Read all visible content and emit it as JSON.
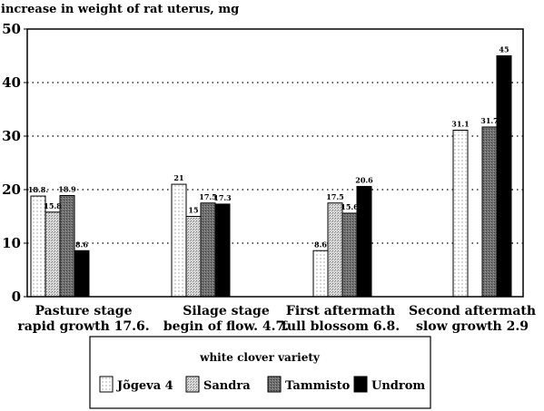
{
  "chart_data": {
    "type": "bar",
    "ylabel": "increase in weight of rat uterus, mg",
    "ylim": [
      0,
      50
    ],
    "yticks": [
      0,
      10,
      20,
      30,
      40,
      50
    ],
    "grid": "dotted horizontal",
    "legend_title": "white clover variety",
    "legend_placement": "bottom-center",
    "categories": [
      [
        "Pasture stage",
        "rapid growth 17.6."
      ],
      [
        "Silage stage",
        "begin of flow. 4.7."
      ],
      [
        "First aftermath",
        "full blossom 6.8."
      ],
      [
        "Second aftermath",
        "slow growth 2.9"
      ]
    ],
    "series": [
      {
        "name": "Jõgeva 4",
        "values": [
          18.8,
          21,
          8.6,
          31.1
        ],
        "labels": [
          "18.8.",
          "21",
          "8.6",
          "31.1"
        ],
        "pattern": "dots",
        "color": "#ffffff"
      },
      {
        "name": "Sandra",
        "values": [
          15.8,
          15,
          17.5,
          null
        ],
        "labels": [
          "15.8",
          "15",
          "17.5",
          ""
        ],
        "pattern": "stipple",
        "color": "#c8c8c8"
      },
      {
        "name": "Tammisto",
        "values": [
          18.9,
          17.5,
          15.6,
          31.7
        ],
        "labels": [
          "18.9",
          "17.5",
          "15.6",
          "31.7"
        ],
        "pattern": "dark",
        "color": "#6a6a6a"
      },
      {
        "name": "Undrom",
        "values": [
          8.6,
          17.3,
          20.6,
          45
        ],
        "labels": [
          "8.6",
          "17.3",
          "20.6",
          "45"
        ],
        "pattern": "solid",
        "color": "#000000"
      }
    ]
  }
}
